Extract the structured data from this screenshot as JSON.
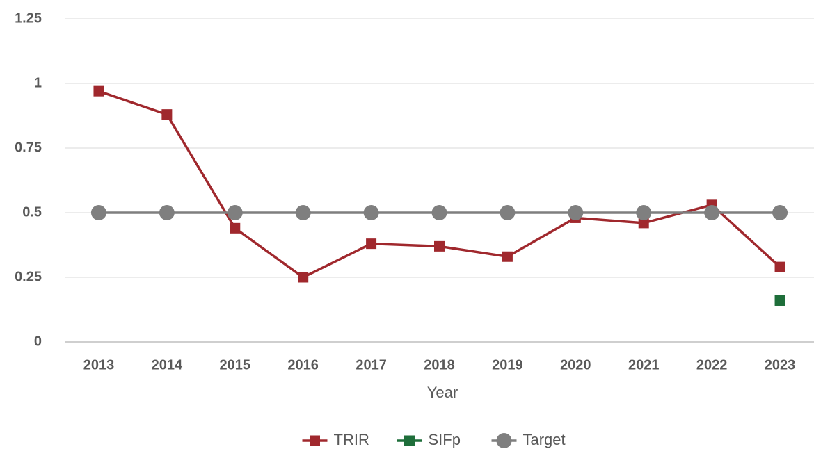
{
  "chart_data": {
    "type": "line",
    "x_label": "Year",
    "categories": [
      "2013",
      "2014",
      "2015",
      "2016",
      "2017",
      "2018",
      "2019",
      "2020",
      "2021",
      "2022",
      "2023"
    ],
    "series": [
      {
        "name": "TRIR",
        "color": "#a0282d",
        "marker": "square",
        "values": [
          0.97,
          0.88,
          0.44,
          0.25,
          0.38,
          0.37,
          0.33,
          0.48,
          0.46,
          0.53,
          0.29
        ]
      },
      {
        "name": "SIFp",
        "color": "#1e6e3a",
        "marker": "square",
        "values": [
          null,
          null,
          null,
          null,
          null,
          null,
          null,
          null,
          null,
          null,
          0.16
        ]
      },
      {
        "name": "Target",
        "color": "#7f7f7f",
        "marker": "circle",
        "values": [
          0.5,
          0.5,
          0.5,
          0.5,
          0.5,
          0.5,
          0.5,
          0.5,
          0.5,
          0.5,
          0.5
        ]
      }
    ],
    "ylim": [
      0,
      1.25
    ],
    "yticks": [
      0,
      0.25,
      0.5,
      0.75,
      1,
      1.25
    ],
    "grid": true,
    "legend": "bottom"
  }
}
